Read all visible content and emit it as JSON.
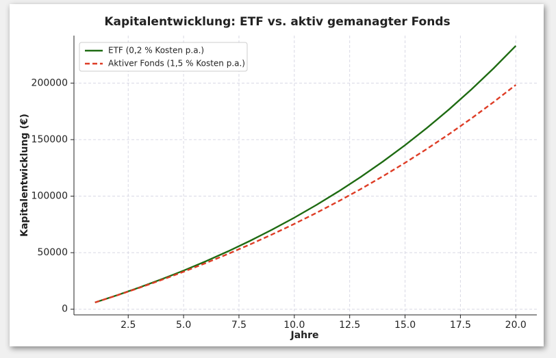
{
  "chart_data": {
    "type": "line",
    "title": "Kapitalentwicklung: ETF vs. aktiv gemanagter Fonds",
    "x_label": "Jahre",
    "y_label": "Kapitalentwicklung (€)",
    "x": [
      1,
      2,
      3,
      4,
      5,
      6,
      7,
      8,
      9,
      10,
      11,
      12,
      13,
      14,
      15,
      16,
      17,
      18,
      19,
      20
    ],
    "series": [
      {
        "name": "ETF (0,2 % Kosten p.a.)",
        "color": "#1e6b12",
        "dash": false,
        "values": [
          6000,
          12390,
          19195,
          26443,
          34162,
          42383,
          51137,
          60461,
          70391,
          80966,
          92229,
          104224,
          116999,
          130604,
          145093,
          160524,
          176958,
          194461,
          213101,
          232952
        ]
      },
      {
        "name": "Aktiver Fonds (1,5 % Kosten p.a.)",
        "color": "#de3c25",
        "dash": true,
        "values": [
          6000,
          12300,
          18915,
          25861,
          33154,
          40811,
          48852,
          57295,
          66160,
          75467,
          85241,
          95503,
          106278,
          117592,
          129472,
          141945,
          155042,
          168794,
          183234,
          198396
        ]
      }
    ],
    "xlim": [
      0.05,
      20.95
    ],
    "xticks": [
      {
        "value": 2.5,
        "label": "2.5"
      },
      {
        "value": 5,
        "label": "5.0"
      },
      {
        "value": 7.5,
        "label": "7.5"
      },
      {
        "value": 10,
        "label": "10.0"
      },
      {
        "value": 12.5,
        "label": "12.5"
      },
      {
        "value": 15,
        "label": "15.0"
      },
      {
        "value": 17.5,
        "label": "17.5"
      },
      {
        "value": 20,
        "label": "20.0"
      }
    ],
    "ylim": [
      -5000,
      242000
    ],
    "yticks": [
      0,
      50000,
      100000,
      150000,
      200000
    ],
    "grid": true,
    "legend": "upper left"
  }
}
